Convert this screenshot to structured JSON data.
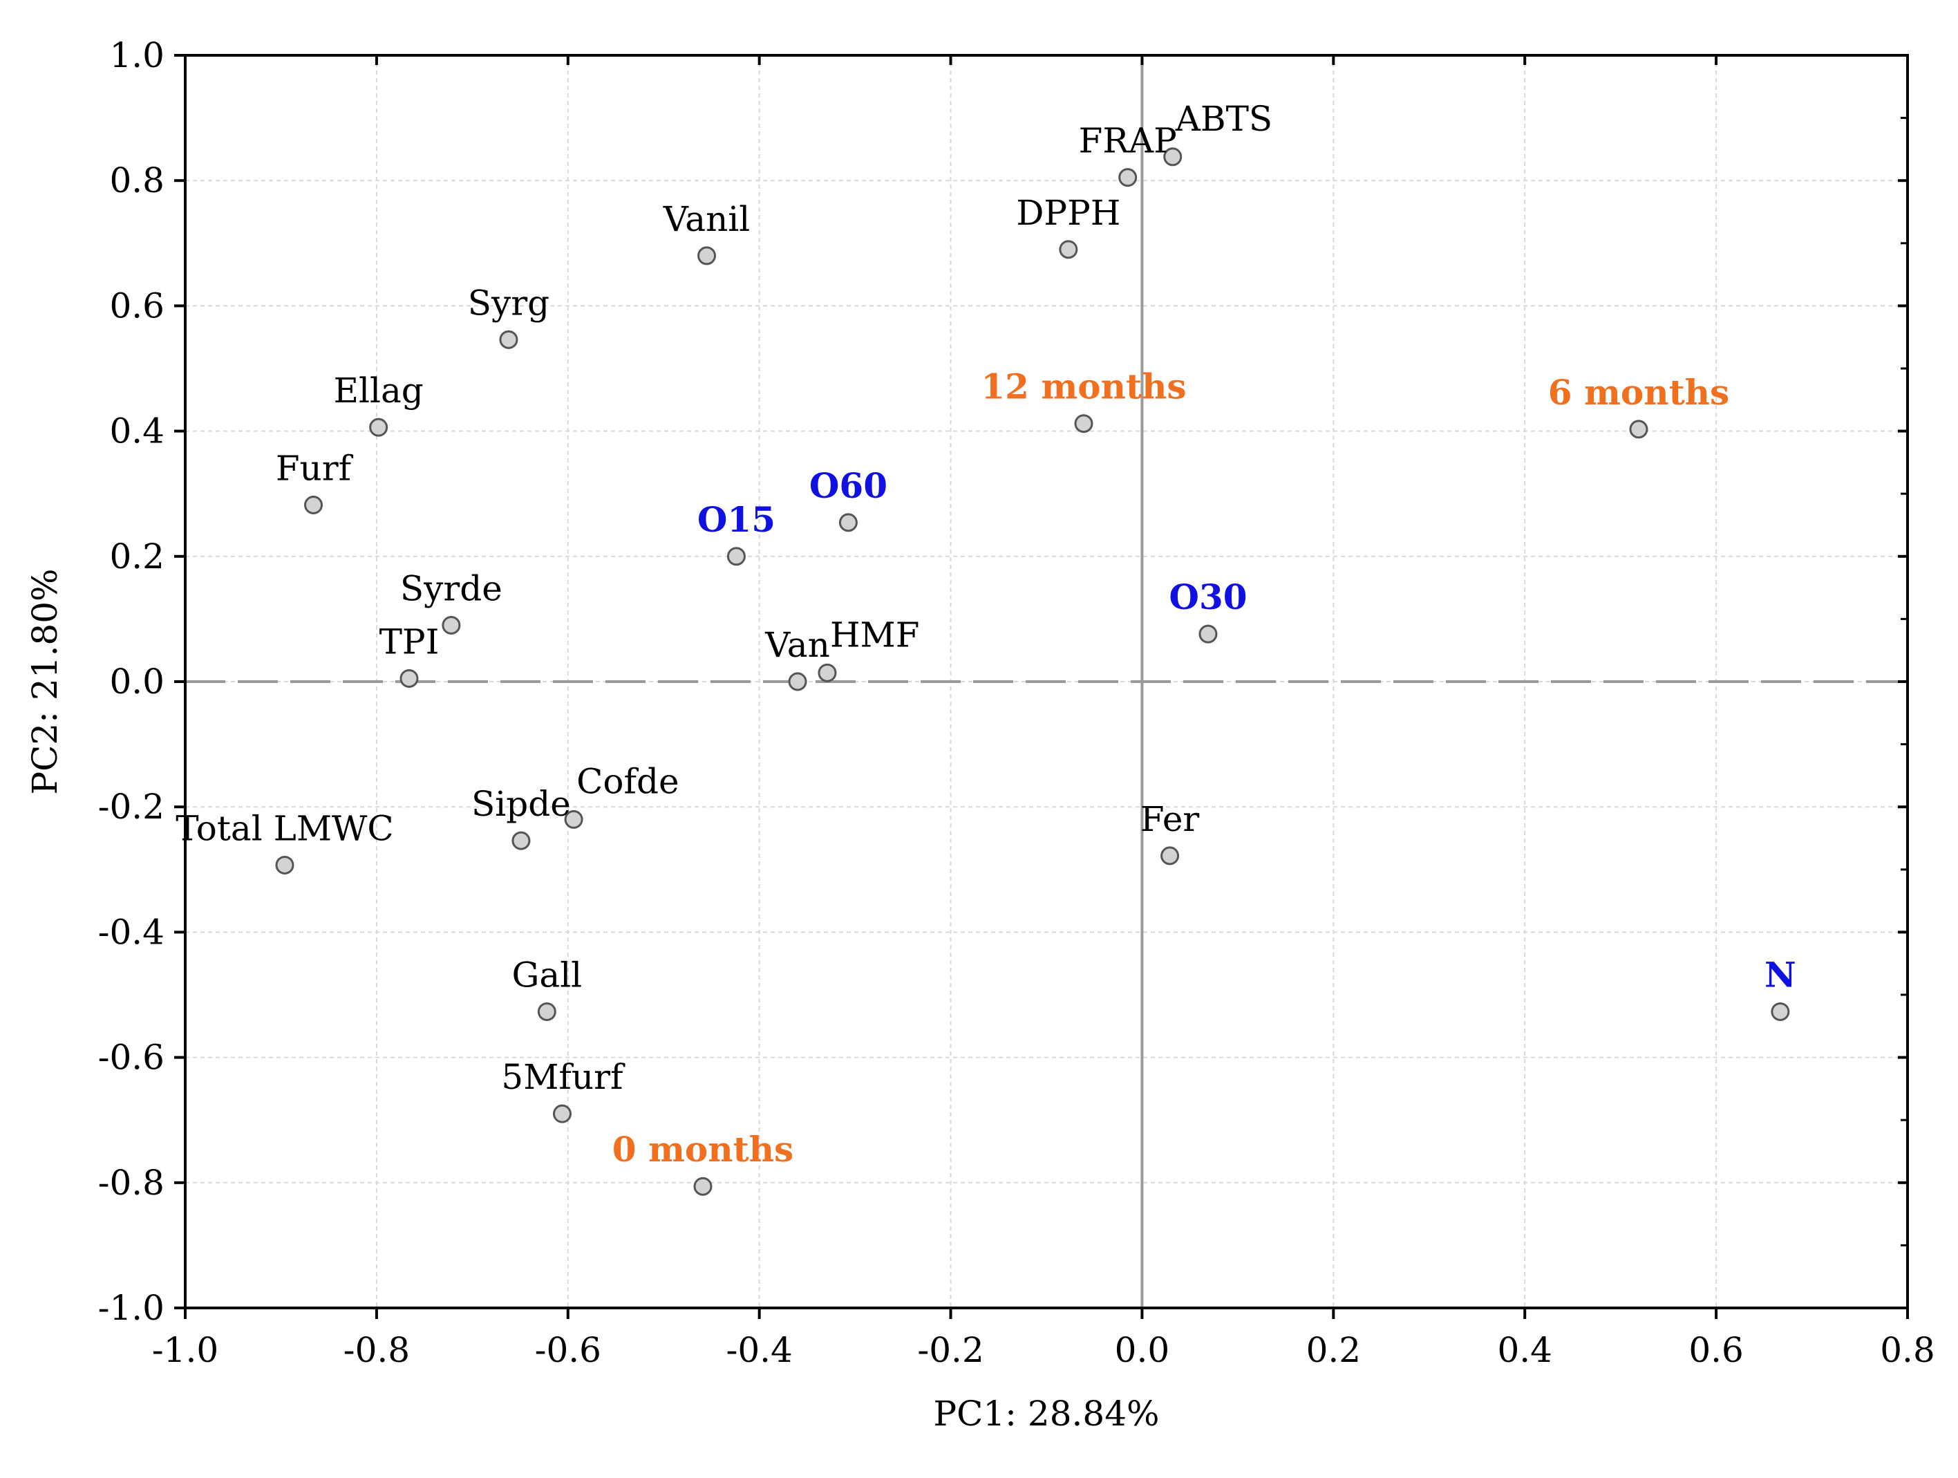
{
  "chart_data": {
    "type": "scatter",
    "title": "",
    "xlabel": "PC1: 28.84%",
    "ylabel": "PC2: 21.80%",
    "xlim": [
      -1.0,
      0.8
    ],
    "ylim": [
      -1.0,
      1.0
    ],
    "xticks": [
      "-1.0",
      "-0.8",
      "-0.6",
      "-0.4",
      "-0.2",
      "0.0",
      "0.2",
      "0.4",
      "0.6",
      "0.8"
    ],
    "yticks": [
      "1.0",
      "0.8",
      "0.6",
      "0.4",
      "0.2",
      "0.0",
      "-0.2",
      "-0.4",
      "-0.6",
      "-0.8",
      "-1.0"
    ],
    "grid": true,
    "colors": {
      "variable": "#000000",
      "storage": "#F07020",
      "treatment": "#1010E0",
      "marker_fill": "#D3D3D3",
      "marker_stroke": "#555555",
      "axis": "#000000",
      "grid": "#D9D9D9",
      "zero_line": "#9A9A9A"
    },
    "points": [
      {
        "label": "ABTS",
        "x": 0.032,
        "y": 0.838,
        "group": "variable",
        "anchor": "above-right"
      },
      {
        "label": "FRAP",
        "x": -0.015,
        "y": 0.805,
        "group": "variable",
        "anchor": "above"
      },
      {
        "label": "DPPH",
        "x": -0.077,
        "y": 0.69,
        "group": "variable",
        "anchor": "above"
      },
      {
        "label": "Vanil",
        "x": -0.455,
        "y": 0.68,
        "group": "variable",
        "anchor": "above"
      },
      {
        "label": "Syrg",
        "x": -0.662,
        "y": 0.546,
        "group": "variable",
        "anchor": "above"
      },
      {
        "label": "Ellag",
        "x": -0.798,
        "y": 0.406,
        "group": "variable",
        "anchor": "above"
      },
      {
        "label": "Furf",
        "x": -0.866,
        "y": 0.282,
        "group": "variable",
        "anchor": "above"
      },
      {
        "label": "Syrde",
        "x": -0.722,
        "y": 0.09,
        "group": "variable",
        "anchor": "above"
      },
      {
        "label": "TPI",
        "x": -0.766,
        "y": 0.005,
        "group": "variable",
        "anchor": "above"
      },
      {
        "label": "Van",
        "x": -0.36,
        "y": 0.0,
        "group": "variable",
        "anchor": "above"
      },
      {
        "label": "HMF",
        "x": -0.329,
        "y": 0.014,
        "group": "variable",
        "anchor": "above-right"
      },
      {
        "label": "Cofde",
        "x": -0.594,
        "y": -0.22,
        "group": "variable",
        "anchor": "above-right"
      },
      {
        "label": "Sipde",
        "x": -0.649,
        "y": -0.254,
        "group": "variable",
        "anchor": "above"
      },
      {
        "label": "Total LMWC",
        "x": -0.896,
        "y": -0.293,
        "group": "variable",
        "anchor": "above"
      },
      {
        "label": "Fer",
        "x": 0.029,
        "y": -0.278,
        "group": "variable",
        "anchor": "above"
      },
      {
        "label": "Gall",
        "x": -0.622,
        "y": -0.527,
        "group": "variable",
        "anchor": "above"
      },
      {
        "label": "5Mfurf",
        "x": -0.606,
        "y": -0.69,
        "group": "variable",
        "anchor": "above"
      },
      {
        "label": "12 months",
        "x": -0.061,
        "y": 0.412,
        "group": "storage",
        "anchor": "above"
      },
      {
        "label": "6 months",
        "x": 0.519,
        "y": 0.403,
        "group": "storage",
        "anchor": "above"
      },
      {
        "label": "0 months",
        "x": -0.459,
        "y": -0.806,
        "group": "storage",
        "anchor": "above"
      },
      {
        "label": "O15",
        "x": -0.424,
        "y": 0.2,
        "group": "treatment",
        "anchor": "above"
      },
      {
        "label": "O60",
        "x": -0.307,
        "y": 0.254,
        "group": "treatment",
        "anchor": "above"
      },
      {
        "label": "O30",
        "x": 0.069,
        "y": 0.076,
        "group": "treatment",
        "anchor": "above"
      },
      {
        "label": "N",
        "x": 0.667,
        "y": -0.527,
        "group": "treatment",
        "anchor": "above"
      }
    ]
  }
}
